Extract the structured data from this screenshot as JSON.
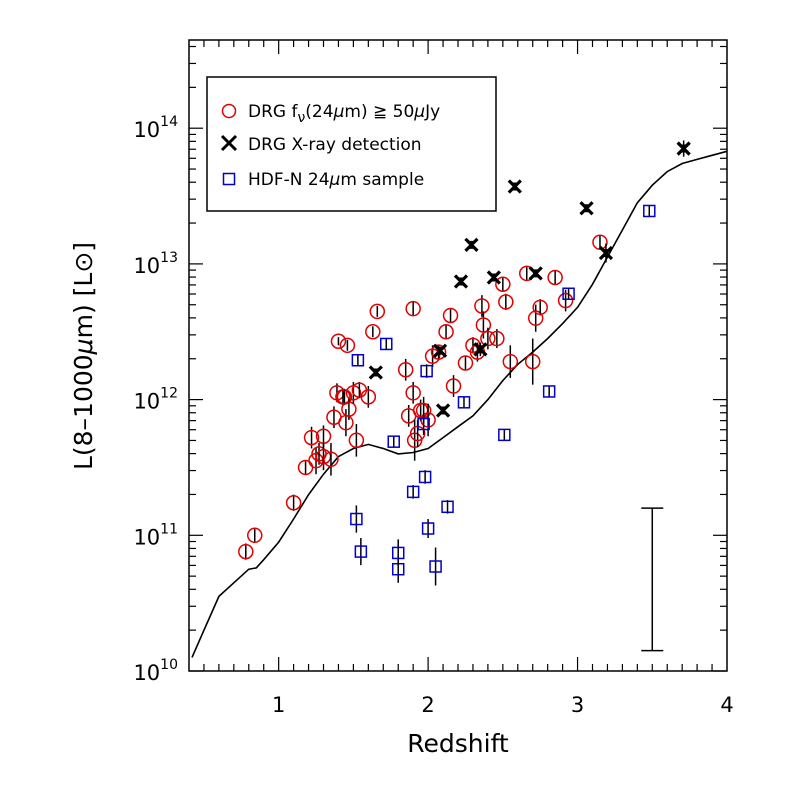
{
  "chart_data": {
    "type": "scatter",
    "title": "",
    "xlabel": "Redshift",
    "ylabel": "L(8–1000μm) [L⊙]",
    "ylabel_parts": {
      "prefix": "L(8–1000",
      "mu": "μ",
      "suffix": "m) [L⊙]"
    },
    "xlim": [
      0.4,
      4.0
    ],
    "ylim_log10": [
      10.0,
      14.65
    ],
    "yscale": "log",
    "x_ticks": [
      {
        "value": 1,
        "label": "1"
      },
      {
        "value": 2,
        "label": "2"
      },
      {
        "value": 3,
        "label": "3"
      },
      {
        "value": 4,
        "label": "4"
      }
    ],
    "y_ticks": [
      {
        "exp": 10,
        "base": "10",
        "sup": "10"
      },
      {
        "exp": 11,
        "base": "10",
        "sup": "11"
      },
      {
        "exp": 12,
        "base": "10",
        "sup": "12"
      },
      {
        "exp": 13,
        "base": "10",
        "sup": "13"
      },
      {
        "exp": 14,
        "base": "10",
        "sup": "14"
      }
    ],
    "legend": {
      "position": "top-left",
      "entries": [
        {
          "marker": "circle",
          "color": "#e00000",
          "parts": {
            "a": "DRG f",
            "sub": "ν",
            "b": "(24",
            "mu": "μ",
            "c": "m) ≧ 50",
            "mu2": "μ",
            "d": "Jy"
          }
        },
        {
          "marker": "star",
          "color": "#000000",
          "parts": {
            "a": "DRG X-ray detection"
          }
        },
        {
          "marker": "square",
          "color": "#0000cc",
          "parts": {
            "a": "HDF-N 24",
            "mu": "μ",
            "b": "m sample"
          }
        }
      ]
    },
    "colors": {
      "circle": "#e00000",
      "square": "#0000cc",
      "star": "#000000",
      "line": "#000000"
    },
    "typical_error_bar": {
      "x": 3.5,
      "log10_low": 10.15,
      "log10_high": 11.2
    },
    "curve_log10": [
      [
        0.42,
        10.1
      ],
      [
        0.5,
        10.3
      ],
      [
        0.6,
        10.55
      ],
      [
        0.7,
        10.65
      ],
      [
        0.8,
        10.75
      ],
      [
        0.85,
        10.76
      ],
      [
        0.9,
        10.82
      ],
      [
        1.0,
        10.95
      ],
      [
        1.1,
        11.12
      ],
      [
        1.2,
        11.3
      ],
      [
        1.3,
        11.45
      ],
      [
        1.4,
        11.58
      ],
      [
        1.5,
        11.64
      ],
      [
        1.6,
        11.67
      ],
      [
        1.7,
        11.64
      ],
      [
        1.8,
        11.6
      ],
      [
        1.9,
        11.61
      ],
      [
        2.0,
        11.64
      ],
      [
        2.1,
        11.72
      ],
      [
        2.2,
        11.8
      ],
      [
        2.3,
        11.88
      ],
      [
        2.4,
        12.0
      ],
      [
        2.5,
        12.14
      ],
      [
        2.6,
        12.26
      ],
      [
        2.7,
        12.35
      ],
      [
        2.8,
        12.45
      ],
      [
        2.9,
        12.56
      ],
      [
        3.0,
        12.68
      ],
      [
        3.1,
        12.85
      ],
      [
        3.2,
        13.05
      ],
      [
        3.3,
        13.25
      ],
      [
        3.4,
        13.45
      ],
      [
        3.5,
        13.58
      ],
      [
        3.6,
        13.68
      ],
      [
        3.7,
        13.74
      ],
      [
        3.8,
        13.77
      ],
      [
        3.9,
        13.8
      ],
      [
        4.0,
        13.83
      ]
    ],
    "series": [
      {
        "name": "DRG fν(24μm) ≥ 50μJy",
        "marker": "circle",
        "points": [
          {
            "x": 0.78,
            "y": 10.88,
            "err": 0.06
          },
          {
            "x": 0.84,
            "y": 11.0,
            "err": 0.05
          },
          {
            "x": 1.1,
            "y": 11.24,
            "err": 0.06
          },
          {
            "x": 1.18,
            "y": 11.5,
            "err": 0.05
          },
          {
            "x": 1.22,
            "y": 11.72,
            "err": 0.08
          },
          {
            "x": 1.25,
            "y": 11.55,
            "err": 0.1
          },
          {
            "x": 1.27,
            "y": 11.6,
            "err": 0.08
          },
          {
            "x": 1.3,
            "y": 11.73,
            "err": 0.08
          },
          {
            "x": 1.3,
            "y": 11.58,
            "err": 0.1
          },
          {
            "x": 1.35,
            "y": 11.56,
            "err": 0.12
          },
          {
            "x": 1.37,
            "y": 11.87,
            "err": 0.08
          },
          {
            "x": 1.39,
            "y": 12.05,
            "err": 0.07
          },
          {
            "x": 1.4,
            "y": 12.43,
            "err": 0.03
          },
          {
            "x": 1.43,
            "y": 12.02,
            "err": 0.06
          },
          {
            "x": 1.44,
            "y": 12.02,
            "err": 0.06
          },
          {
            "x": 1.45,
            "y": 11.83,
            "err": 0.1
          },
          {
            "x": 1.46,
            "y": 12.4,
            "err": 0.04
          },
          {
            "x": 1.47,
            "y": 11.93,
            "err": 0.08
          },
          {
            "x": 1.5,
            "y": 12.05,
            "err": 0.08
          },
          {
            "x": 1.52,
            "y": 11.7,
            "err": 0.12
          },
          {
            "x": 1.54,
            "y": 12.07,
            "err": 0.06
          },
          {
            "x": 1.6,
            "y": 12.02,
            "err": 0.08
          },
          {
            "x": 1.63,
            "y": 12.5,
            "err": 0.04
          },
          {
            "x": 1.66,
            "y": 12.65,
            "err": 0.04
          },
          {
            "x": 1.85,
            "y": 12.22,
            "err": 0.08
          },
          {
            "x": 1.87,
            "y": 11.88,
            "err": 0.08
          },
          {
            "x": 1.9,
            "y": 12.05,
            "err": 0.08
          },
          {
            "x": 1.9,
            "y": 12.67,
            "err": 0.05
          },
          {
            "x": 1.91,
            "y": 11.7,
            "err": 0.15
          },
          {
            "x": 1.93,
            "y": 11.75,
            "err": 0.1
          },
          {
            "x": 1.95,
            "y": 11.92,
            "err": 0.08
          },
          {
            "x": 1.97,
            "y": 11.92,
            "err": 0.1
          },
          {
            "x": 2.0,
            "y": 11.85,
            "err": 0.12
          },
          {
            "x": 2.03,
            "y": 12.32,
            "err": 0.08
          },
          {
            "x": 2.07,
            "y": 12.35,
            "err": 0.05
          },
          {
            "x": 2.12,
            "y": 12.5,
            "err": 0.05
          },
          {
            "x": 2.15,
            "y": 12.62,
            "err": 0.05
          },
          {
            "x": 2.17,
            "y": 12.1,
            "err": 0.08
          },
          {
            "x": 2.25,
            "y": 12.27,
            "err": 0.05
          },
          {
            "x": 2.3,
            "y": 12.4,
            "err": 0.06
          },
          {
            "x": 2.33,
            "y": 12.35,
            "err": 0.07
          },
          {
            "x": 2.36,
            "y": 12.69,
            "err": 0.08
          },
          {
            "x": 2.37,
            "y": 12.55,
            "err": 0.1
          },
          {
            "x": 2.4,
            "y": 12.45,
            "err": 0.08
          },
          {
            "x": 2.46,
            "y": 12.45,
            "err": 0.07
          },
          {
            "x": 2.5,
            "y": 12.85,
            "err": 0.05
          },
          {
            "x": 2.52,
            "y": 12.72,
            "err": 0.06
          },
          {
            "x": 2.55,
            "y": 12.28,
            "err": 0.12
          },
          {
            "x": 2.66,
            "y": 12.93,
            "err": 0.05
          },
          {
            "x": 2.7,
            "y": 12.28,
            "err": 0.17
          },
          {
            "x": 2.72,
            "y": 12.6,
            "err": 0.1
          },
          {
            "x": 2.75,
            "y": 12.68,
            "err": 0.06
          },
          {
            "x": 2.85,
            "y": 12.9,
            "err": 0.05
          },
          {
            "x": 2.92,
            "y": 12.73,
            "err": 0.08
          },
          {
            "x": 3.15,
            "y": 13.16,
            "err": 0.05
          }
        ]
      },
      {
        "name": "DRG X-ray detection",
        "marker": "star",
        "points": [
          {
            "x": 1.65,
            "y": 12.2,
            "err": 0.0
          },
          {
            "x": 2.08,
            "y": 12.36,
            "err": 0.0
          },
          {
            "x": 2.1,
            "y": 11.92,
            "err": 0.0
          },
          {
            "x": 2.22,
            "y": 12.87,
            "err": 0.0
          },
          {
            "x": 2.29,
            "y": 13.14,
            "err": 0.0
          },
          {
            "x": 2.35,
            "y": 12.37,
            "err": 0.05
          },
          {
            "x": 2.44,
            "y": 12.9,
            "err": 0.0
          },
          {
            "x": 2.58,
            "y": 13.57,
            "err": 0.0
          },
          {
            "x": 2.72,
            "y": 12.93,
            "err": 0.0
          },
          {
            "x": 3.06,
            "y": 13.41,
            "err": 0.0
          },
          {
            "x": 3.19,
            "y": 13.08,
            "err": 0.07
          },
          {
            "x": 3.71,
            "y": 13.85,
            "err": 0.06
          }
        ]
      },
      {
        "name": "HDF-N 24μm sample",
        "marker": "square",
        "points": [
          {
            "x": 1.52,
            "y": 11.12,
            "err": 0.1
          },
          {
            "x": 1.53,
            "y": 12.29,
            "err": 0.04
          },
          {
            "x": 1.55,
            "y": 10.88,
            "err": 0.1
          },
          {
            "x": 1.72,
            "y": 12.41,
            "err": 0.04
          },
          {
            "x": 1.77,
            "y": 11.69,
            "err": 0.04
          },
          {
            "x": 1.8,
            "y": 10.75,
            "err": 0.1
          },
          {
            "x": 1.8,
            "y": 10.87,
            "err": 0.1
          },
          {
            "x": 1.9,
            "y": 11.32,
            "err": 0.05
          },
          {
            "x": 1.97,
            "y": 11.82,
            "err": 0.08
          },
          {
            "x": 1.98,
            "y": 11.43,
            "err": 0.05
          },
          {
            "x": 1.99,
            "y": 12.21,
            "err": 0.05
          },
          {
            "x": 2.0,
            "y": 11.05,
            "err": 0.07
          },
          {
            "x": 2.05,
            "y": 10.77,
            "err": 0.14
          },
          {
            "x": 2.13,
            "y": 11.21,
            "err": 0.05
          },
          {
            "x": 2.24,
            "y": 11.98,
            "err": 0.04
          },
          {
            "x": 2.51,
            "y": 11.74,
            "err": 0.04
          },
          {
            "x": 2.81,
            "y": 12.06,
            "err": 0.04
          },
          {
            "x": 2.94,
            "y": 12.78,
            "err": 0.04
          },
          {
            "x": 3.48,
            "y": 13.39,
            "err": 0.04
          }
        ]
      }
    ]
  }
}
